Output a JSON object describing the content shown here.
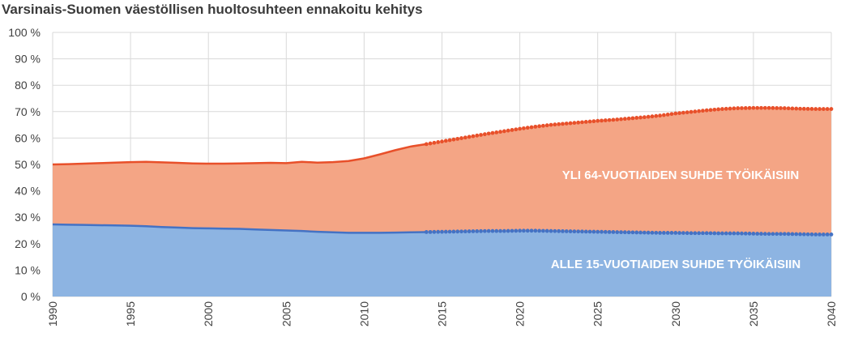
{
  "chart_data": {
    "type": "area",
    "title": "Varsinais-Suomen väestöllisen huoltosuhteen ennakoitu kehitys",
    "xlabel": "",
    "ylabel": "",
    "xlim": [
      1990,
      2040
    ],
    "ylim": [
      0,
      100
    ],
    "y_ticks": [
      "0 %",
      "10 %",
      "20 %",
      "30 %",
      "40 %",
      "50 %",
      "60 %",
      "70 %",
      "80 %",
      "90 %",
      "100 %"
    ],
    "x_ticks": [
      "1990",
      "1995",
      "2000",
      "2005",
      "2010",
      "2015",
      "2020",
      "2025",
      "2030",
      "2035",
      "2040"
    ],
    "grid": true,
    "forecast_start": 2014,
    "annotations": [
      "YLI 64-VUOTIAIDEN SUHDE TYÖIKÄISIIN",
      "ALLE 15-VUOTIAIDEN SUHDE TYÖIKÄISIIN"
    ],
    "x": [
      1990,
      1991,
      1992,
      1993,
      1994,
      1995,
      1996,
      1997,
      1998,
      1999,
      2000,
      2001,
      2002,
      2003,
      2004,
      2005,
      2006,
      2007,
      2008,
      2009,
      2010,
      2011,
      2012,
      2013,
      2014,
      2015,
      2016,
      2017,
      2018,
      2019,
      2020,
      2021,
      2022,
      2023,
      2024,
      2025,
      2026,
      2027,
      2028,
      2029,
      2030,
      2031,
      2032,
      2033,
      2034,
      2035,
      2036,
      2037,
      2038,
      2039,
      2040
    ],
    "series": [
      {
        "color": "#4472c4",
        "fill": "#8db4e2",
        "values": [
          27.3,
          27.2,
          27.1,
          27.0,
          26.9,
          26.8,
          26.6,
          26.3,
          26.1,
          25.9,
          25.8,
          25.7,
          25.6,
          25.4,
          25.2,
          25.0,
          24.8,
          24.5,
          24.3,
          24.1,
          24.1,
          24.1,
          24.2,
          24.3,
          24.4,
          24.5,
          24.6,
          24.7,
          24.8,
          24.8,
          24.9,
          24.9,
          24.8,
          24.7,
          24.6,
          24.5,
          24.4,
          24.3,
          24.2,
          24.1,
          24.1,
          24.0,
          24.0,
          23.9,
          23.9,
          23.8,
          23.7,
          23.7,
          23.6,
          23.5,
          23.5
        ]
      },
      {
        "color": "#e8502a",
        "fill": "#f4a585",
        "values": [
          50.0,
          50.1,
          50.3,
          50.5,
          50.7,
          50.9,
          51.0,
          50.8,
          50.6,
          50.4,
          50.3,
          50.3,
          50.4,
          50.5,
          50.6,
          50.5,
          51.0,
          50.7,
          50.9,
          51.3,
          52.3,
          53.8,
          55.4,
          56.8,
          57.7,
          58.7,
          59.7,
          60.7,
          61.7,
          62.6,
          63.5,
          64.3,
          65.0,
          65.5,
          66.0,
          66.5,
          66.9,
          67.4,
          67.9,
          68.5,
          69.3,
          69.9,
          70.5,
          71.0,
          71.3,
          71.4,
          71.4,
          71.3,
          71.1,
          71.0,
          71.0
        ]
      }
    ]
  }
}
